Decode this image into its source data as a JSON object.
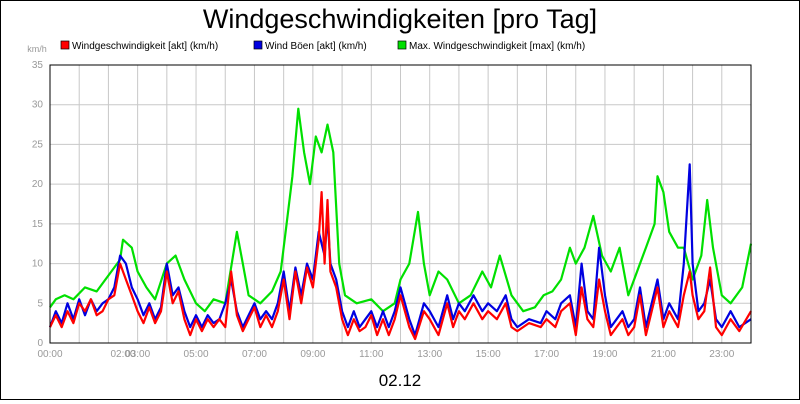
{
  "chart_data": {
    "type": "line",
    "title": "Windgeschwindigkeiten [pro Tag]",
    "subtitle": "02.12",
    "ylabel": "km/h",
    "xlabel": "",
    "ylim": [
      0,
      35
    ],
    "xlim": [
      0,
      24
    ],
    "grid": true,
    "legend_position": "top",
    "y_ticks": [
      "0",
      "5",
      "10",
      "15",
      "20",
      "25",
      "30",
      "35"
    ],
    "x_ticks": [
      {
        "x": 0,
        "label": "00:00"
      },
      {
        "x": 2.5,
        "label": "02:00"
      },
      {
        "x": 3.0,
        "label": "03:00"
      },
      {
        "x": 5,
        "label": "05:00"
      },
      {
        "x": 7,
        "label": "07:00"
      },
      {
        "x": 9,
        "label": "09:00"
      },
      {
        "x": 11,
        "label": "11:00"
      },
      {
        "x": 13,
        "label": "13:00"
      },
      {
        "x": 15,
        "label": "15:00"
      },
      {
        "x": 17,
        "label": "17:00"
      },
      {
        "x": 19,
        "label": "19:00"
      },
      {
        "x": 21,
        "label": "21:00"
      },
      {
        "x": 23,
        "label": "23:00"
      }
    ],
    "series": [
      {
        "name": "Max. Windgeschwindigkeit [max] (km/h)",
        "color": "#00e000",
        "points": [
          [
            0,
            4.5
          ],
          [
            0.2,
            5.5
          ],
          [
            0.5,
            6
          ],
          [
            0.8,
            5.5
          ],
          [
            1.2,
            7
          ],
          [
            1.6,
            6.5
          ],
          [
            2.0,
            8.5
          ],
          [
            2.4,
            10.5
          ],
          [
            2.5,
            13
          ],
          [
            2.8,
            12
          ],
          [
            3.0,
            9
          ],
          [
            3.3,
            7
          ],
          [
            3.6,
            5.5
          ],
          [
            4.0,
            10
          ],
          [
            4.3,
            11
          ],
          [
            4.6,
            8
          ],
          [
            5.0,
            5
          ],
          [
            5.3,
            4
          ],
          [
            5.6,
            5.5
          ],
          [
            6.0,
            5
          ],
          [
            6.4,
            14
          ],
          [
            6.6,
            10
          ],
          [
            6.8,
            6
          ],
          [
            7.2,
            5
          ],
          [
            7.6,
            6.5
          ],
          [
            7.9,
            9
          ],
          [
            8.1,
            15
          ],
          [
            8.3,
            21
          ],
          [
            8.5,
            29.5
          ],
          [
            8.7,
            24
          ],
          [
            8.9,
            20
          ],
          [
            9.1,
            26
          ],
          [
            9.3,
            24
          ],
          [
            9.5,
            27.5
          ],
          [
            9.7,
            24
          ],
          [
            9.9,
            10
          ],
          [
            10.1,
            6
          ],
          [
            10.5,
            5
          ],
          [
            11.0,
            5.5
          ],
          [
            11.4,
            4
          ],
          [
            11.8,
            5
          ],
          [
            12.0,
            8
          ],
          [
            12.3,
            10
          ],
          [
            12.6,
            16.5
          ],
          [
            12.8,
            10
          ],
          [
            13.0,
            6
          ],
          [
            13.3,
            9
          ],
          [
            13.6,
            8
          ],
          [
            14.0,
            5
          ],
          [
            14.4,
            6
          ],
          [
            14.8,
            9
          ],
          [
            15.1,
            7
          ],
          [
            15.4,
            11
          ],
          [
            15.8,
            6
          ],
          [
            16.2,
            4
          ],
          [
            16.6,
            4.5
          ],
          [
            16.9,
            6
          ],
          [
            17.2,
            6.5
          ],
          [
            17.5,
            8
          ],
          [
            17.8,
            12
          ],
          [
            18.0,
            10
          ],
          [
            18.3,
            12
          ],
          [
            18.6,
            16
          ],
          [
            18.9,
            11
          ],
          [
            19.2,
            9
          ],
          [
            19.5,
            12
          ],
          [
            19.8,
            6
          ],
          [
            20.1,
            9
          ],
          [
            20.4,
            12
          ],
          [
            20.7,
            15
          ],
          [
            20.8,
            21
          ],
          [
            21.0,
            19
          ],
          [
            21.2,
            14
          ],
          [
            21.5,
            12
          ],
          [
            21.7,
            12
          ],
          [
            22.0,
            8
          ],
          [
            22.3,
            11
          ],
          [
            22.5,
            18
          ],
          [
            22.7,
            12
          ],
          [
            23.0,
            6
          ],
          [
            23.3,
            5
          ],
          [
            23.7,
            7
          ],
          [
            24.0,
            12.5
          ]
        ]
      },
      {
        "name": "Wind Böen [akt] (km/h)",
        "color": "#0000e0",
        "points": [
          [
            0,
            2
          ],
          [
            0.2,
            4
          ],
          [
            0.4,
            2.5
          ],
          [
            0.6,
            5
          ],
          [
            0.8,
            3
          ],
          [
            1.0,
            5.5
          ],
          [
            1.2,
            3.5
          ],
          [
            1.4,
            5.5
          ],
          [
            1.6,
            4
          ],
          [
            1.8,
            5
          ],
          [
            2.0,
            5.5
          ],
          [
            2.2,
            7
          ],
          [
            2.4,
            11
          ],
          [
            2.6,
            10
          ],
          [
            2.8,
            7
          ],
          [
            3.0,
            5.5
          ],
          [
            3.2,
            3.5
          ],
          [
            3.4,
            5
          ],
          [
            3.6,
            3
          ],
          [
            3.8,
            4.5
          ],
          [
            4.0,
            10
          ],
          [
            4.2,
            6
          ],
          [
            4.4,
            7
          ],
          [
            4.6,
            4
          ],
          [
            4.8,
            2
          ],
          [
            5.0,
            3.5
          ],
          [
            5.2,
            2
          ],
          [
            5.4,
            3.5
          ],
          [
            5.6,
            2.5
          ],
          [
            5.8,
            3
          ],
          [
            6.0,
            5
          ],
          [
            6.2,
            8
          ],
          [
            6.4,
            4
          ],
          [
            6.6,
            2
          ],
          [
            6.8,
            3.5
          ],
          [
            7.0,
            5
          ],
          [
            7.2,
            3
          ],
          [
            7.4,
            4
          ],
          [
            7.6,
            3
          ],
          [
            7.8,
            5
          ],
          [
            8.0,
            9
          ],
          [
            8.2,
            4
          ],
          [
            8.4,
            9.5
          ],
          [
            8.6,
            6
          ],
          [
            8.8,
            10
          ],
          [
            9.0,
            8
          ],
          [
            9.2,
            14
          ],
          [
            9.4,
            11
          ],
          [
            9.5,
            16
          ],
          [
            9.6,
            10
          ],
          [
            9.8,
            8
          ],
          [
            10.0,
            4
          ],
          [
            10.2,
            2
          ],
          [
            10.4,
            4
          ],
          [
            10.6,
            2
          ],
          [
            10.8,
            3
          ],
          [
            11.0,
            4
          ],
          [
            11.2,
            2
          ],
          [
            11.4,
            4
          ],
          [
            11.6,
            2
          ],
          [
            11.8,
            4
          ],
          [
            12.0,
            7
          ],
          [
            12.3,
            3
          ],
          [
            12.5,
            1
          ],
          [
            12.8,
            5
          ],
          [
            13.0,
            4
          ],
          [
            13.3,
            2
          ],
          [
            13.6,
            6
          ],
          [
            13.8,
            3
          ],
          [
            14.0,
            5
          ],
          [
            14.2,
            4
          ],
          [
            14.5,
            6
          ],
          [
            14.8,
            4
          ],
          [
            15.0,
            5
          ],
          [
            15.3,
            4
          ],
          [
            15.6,
            6
          ],
          [
            15.8,
            3
          ],
          [
            16.0,
            2
          ],
          [
            16.4,
            3
          ],
          [
            16.8,
            2.5
          ],
          [
            17.0,
            4
          ],
          [
            17.3,
            3
          ],
          [
            17.5,
            5
          ],
          [
            17.8,
            6
          ],
          [
            18.0,
            2
          ],
          [
            18.2,
            10
          ],
          [
            18.4,
            4
          ],
          [
            18.6,
            3
          ],
          [
            18.8,
            12
          ],
          [
            19.0,
            6
          ],
          [
            19.2,
            2
          ],
          [
            19.4,
            3
          ],
          [
            19.6,
            4
          ],
          [
            19.8,
            2
          ],
          [
            20.0,
            3
          ],
          [
            20.2,
            7
          ],
          [
            20.4,
            2
          ],
          [
            20.6,
            5
          ],
          [
            20.8,
            8
          ],
          [
            21.0,
            3
          ],
          [
            21.2,
            5
          ],
          [
            21.5,
            3
          ],
          [
            21.7,
            10
          ],
          [
            21.9,
            22.5
          ],
          [
            22.0,
            10
          ],
          [
            22.2,
            4
          ],
          [
            22.4,
            5
          ],
          [
            22.6,
            8
          ],
          [
            22.8,
            3
          ],
          [
            23.0,
            2
          ],
          [
            23.3,
            4
          ],
          [
            23.6,
            2
          ],
          [
            24.0,
            3
          ]
        ]
      },
      {
        "name": "Windgeschwindigkeit [akt] (km/h)",
        "color": "#ff0000",
        "points": [
          [
            0,
            2
          ],
          [
            0.2,
            3.5
          ],
          [
            0.4,
            2
          ],
          [
            0.6,
            4
          ],
          [
            0.8,
            2.5
          ],
          [
            1.0,
            5
          ],
          [
            1.2,
            4
          ],
          [
            1.4,
            5.5
          ],
          [
            1.6,
            3.5
          ],
          [
            1.8,
            4
          ],
          [
            2.0,
            5.5
          ],
          [
            2.2,
            6
          ],
          [
            2.4,
            10
          ],
          [
            2.6,
            8
          ],
          [
            2.8,
            6
          ],
          [
            3.0,
            4
          ],
          [
            3.2,
            2.5
          ],
          [
            3.4,
            4.5
          ],
          [
            3.6,
            2.5
          ],
          [
            3.8,
            4
          ],
          [
            4.0,
            9
          ],
          [
            4.2,
            5
          ],
          [
            4.4,
            6.5
          ],
          [
            4.6,
            3
          ],
          [
            4.8,
            1
          ],
          [
            5.0,
            3
          ],
          [
            5.2,
            1.5
          ],
          [
            5.4,
            3
          ],
          [
            5.6,
            2
          ],
          [
            5.8,
            3
          ],
          [
            6.0,
            2
          ],
          [
            6.2,
            9
          ],
          [
            6.4,
            3.5
          ],
          [
            6.6,
            1.5
          ],
          [
            6.8,
            3
          ],
          [
            7.0,
            4.5
          ],
          [
            7.2,
            2
          ],
          [
            7.4,
            3.5
          ],
          [
            7.6,
            2
          ],
          [
            7.8,
            4
          ],
          [
            8.0,
            8
          ],
          [
            8.2,
            3
          ],
          [
            8.4,
            9
          ],
          [
            8.6,
            5
          ],
          [
            8.8,
            9.5
          ],
          [
            9.0,
            7
          ],
          [
            9.2,
            13
          ],
          [
            9.3,
            19
          ],
          [
            9.4,
            10
          ],
          [
            9.5,
            18
          ],
          [
            9.6,
            9
          ],
          [
            9.8,
            7
          ],
          [
            10.0,
            3
          ],
          [
            10.2,
            1
          ],
          [
            10.4,
            3
          ],
          [
            10.6,
            1.5
          ],
          [
            10.8,
            2
          ],
          [
            11.0,
            3.5
          ],
          [
            11.2,
            1
          ],
          [
            11.4,
            3
          ],
          [
            11.6,
            1
          ],
          [
            11.8,
            3
          ],
          [
            12.0,
            6
          ],
          [
            12.3,
            2
          ],
          [
            12.5,
            0.5
          ],
          [
            12.8,
            4
          ],
          [
            13.0,
            3
          ],
          [
            13.3,
            1
          ],
          [
            13.6,
            5
          ],
          [
            13.8,
            2
          ],
          [
            14.0,
            4
          ],
          [
            14.2,
            3
          ],
          [
            14.5,
            5
          ],
          [
            14.8,
            3
          ],
          [
            15.0,
            4
          ],
          [
            15.3,
            3
          ],
          [
            15.6,
            5
          ],
          [
            15.8,
            2
          ],
          [
            16.0,
            1.5
          ],
          [
            16.4,
            2.5
          ],
          [
            16.8,
            2
          ],
          [
            17.0,
            3
          ],
          [
            17.3,
            2
          ],
          [
            17.5,
            4
          ],
          [
            17.8,
            5
          ],
          [
            18.0,
            1
          ],
          [
            18.2,
            7
          ],
          [
            18.4,
            3
          ],
          [
            18.6,
            2
          ],
          [
            18.8,
            8
          ],
          [
            19.0,
            4
          ],
          [
            19.2,
            1
          ],
          [
            19.4,
            2
          ],
          [
            19.6,
            3
          ],
          [
            19.8,
            1
          ],
          [
            20.0,
            2
          ],
          [
            20.2,
            6
          ],
          [
            20.4,
            1
          ],
          [
            20.6,
            4
          ],
          [
            20.8,
            7
          ],
          [
            21.0,
            2
          ],
          [
            21.2,
            4
          ],
          [
            21.5,
            2
          ],
          [
            21.7,
            6
          ],
          [
            21.9,
            9
          ],
          [
            22.0,
            6
          ],
          [
            22.2,
            3
          ],
          [
            22.4,
            4
          ],
          [
            22.6,
            9.5
          ],
          [
            22.8,
            2
          ],
          [
            23.0,
            1
          ],
          [
            23.3,
            3
          ],
          [
            23.6,
            1.5
          ],
          [
            24.0,
            4
          ]
        ]
      }
    ]
  }
}
